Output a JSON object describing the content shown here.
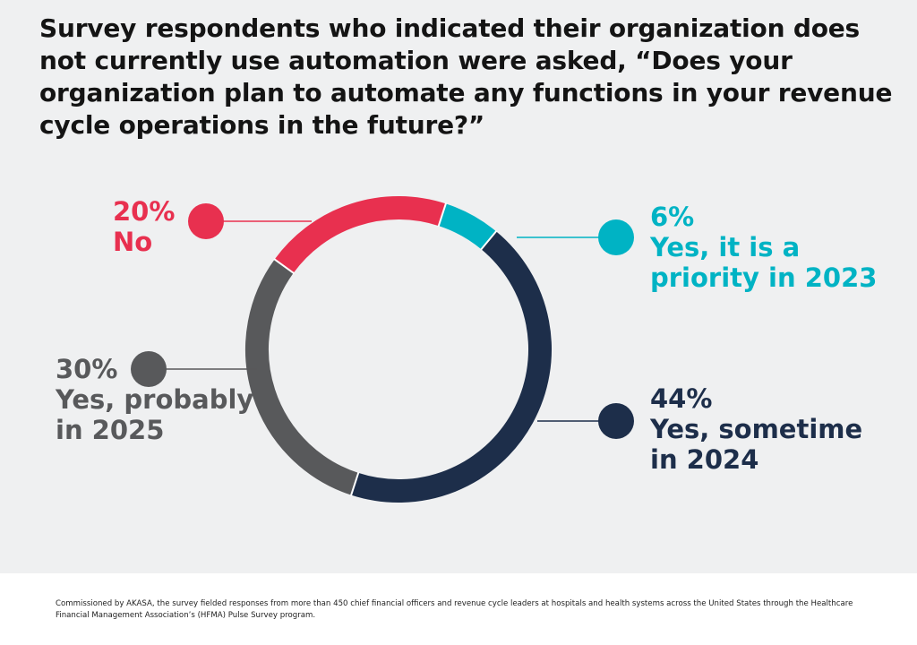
{
  "title": "Survey respondents who indicated their organization does not currently use automation were asked, “Does your organization plan to automate any functions in your revenue cycle operations in the future?”",
  "footnote": "Commissioned by AKASA, the survey fielded responses from more than 450 chief financial officers and revenue cycle leaders at hospitals and health systems across the United States through the Healthcare Financial Management Association’s (HFMA) Pulse Survey program.",
  "chart_data": {
    "type": "pie",
    "style": "donut",
    "title": "Does your organization plan to automate any functions in your revenue cycle operations in the future?",
    "unit": "%",
    "categories": [
      "Yes, it is a priority in 2023",
      "Yes, sometime in 2024",
      "Yes, probably in 2025",
      "No"
    ],
    "values": [
      6,
      44,
      30,
      20
    ],
    "colors": [
      "#00b3c4",
      "#1d2e4a",
      "#58595b",
      "#e8304f"
    ],
    "labels": [
      {
        "pct": "6%",
        "lines": [
          "Yes, it is a",
          "priority in 2023"
        ]
      },
      {
        "pct": "44%",
        "lines": [
          "Yes, sometime",
          "in 2024"
        ]
      },
      {
        "pct": "30%",
        "lines": [
          "Yes, probably",
          "in 2025"
        ]
      },
      {
        "pct": "20%",
        "lines": [
          "No"
        ]
      }
    ]
  }
}
